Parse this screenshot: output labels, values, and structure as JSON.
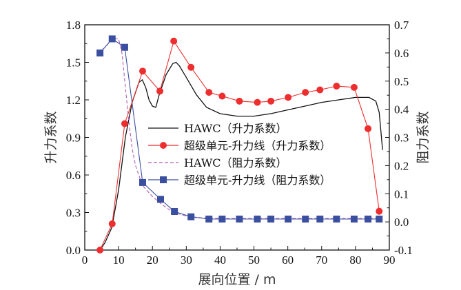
{
  "chart_data": {
    "type": "line",
    "title": "",
    "xlabel": "展向位置 / m",
    "ylabel_left": "升力系数",
    "ylabel_right": "阻力系数",
    "xlim": [
      0,
      90
    ],
    "ylim_left": [
      0.0,
      1.8
    ],
    "ylim_right": [
      -0.1,
      0.7
    ],
    "x_ticks": [
      "0",
      "10",
      "20",
      "30",
      "40",
      "50",
      "60",
      "70",
      "80",
      "90"
    ],
    "y_ticks_left": [
      "0.0",
      "0.3",
      "0.6",
      "0.9",
      "1.2",
      "1.5",
      "1.8"
    ],
    "y_ticks_right": [
      "-0.1",
      "0.0",
      "0.1",
      "0.2",
      "0.3",
      "0.4",
      "0.5",
      "0.6",
      "0.7"
    ],
    "grid": false,
    "legend_position": "center-left",
    "series": [
      {
        "name": "HAWC（升力系数）",
        "axis": "left",
        "style": "solid-line",
        "color": "#111111",
        "x": [
          4.5,
          6,
          8,
          10,
          12,
          14,
          16,
          17,
          18,
          19,
          20,
          21,
          22,
          24,
          26,
          27,
          28,
          30,
          33,
          36,
          40,
          45,
          50,
          55,
          60,
          65,
          70,
          75,
          80,
          84,
          86,
          87,
          88
        ],
        "y": [
          0.0,
          0.06,
          0.18,
          0.48,
          0.9,
          1.18,
          1.34,
          1.36,
          1.3,
          1.2,
          1.15,
          1.14,
          1.24,
          1.4,
          1.49,
          1.5,
          1.47,
          1.38,
          1.24,
          1.14,
          1.09,
          1.07,
          1.07,
          1.09,
          1.12,
          1.15,
          1.18,
          1.2,
          1.22,
          1.22,
          1.19,
          1.1,
          0.8
        ]
      },
      {
        "name": "超级单元-升力线（升力系数）",
        "axis": "left",
        "style": "line-circle",
        "color": "#ee2e2e",
        "x": [
          4.5,
          8.1,
          11.8,
          17.1,
          22.2,
          26.3,
          31.4,
          36.7,
          40.6,
          45.7,
          51.0,
          55.0,
          60.1,
          65.2,
          69.5,
          74.4,
          79.6,
          83.7,
          87.0
        ],
        "y": [
          0.0,
          0.21,
          1.01,
          1.43,
          1.27,
          1.67,
          1.46,
          1.26,
          1.23,
          1.19,
          1.18,
          1.19,
          1.22,
          1.26,
          1.28,
          1.31,
          1.3,
          0.97,
          0.31
        ]
      },
      {
        "name": "HAWC（阻力系数）",
        "axis": "right",
        "style": "dashed-line",
        "color": "#b05cb8",
        "x": [
          4.0,
          6,
          8.1,
          10,
          11,
          12,
          13,
          14,
          15,
          17,
          20,
          23,
          26,
          30,
          35,
          40,
          50,
          60,
          70,
          80,
          88
        ],
        "y": [
          0.6,
          0.62,
          0.65,
          0.65,
          0.6,
          0.48,
          0.36,
          0.26,
          0.2,
          0.13,
          0.09,
          0.06,
          0.035,
          0.02,
          0.014,
          0.012,
          0.012,
          0.012,
          0.012,
          0.012,
          0.012
        ]
      },
      {
        "name": "超级单元-升力线（阻力系数）",
        "axis": "right",
        "style": "line-square",
        "color": "#3a4fa0",
        "x": [
          4.5,
          8.1,
          11.8,
          17.1,
          22.4,
          26.5,
          31.4,
          36.7,
          40.6,
          45.7,
          51.0,
          55.0,
          60.1,
          65.2,
          69.5,
          74.4,
          79.6,
          83.7,
          87.0
        ],
        "y": [
          0.6,
          0.65,
          0.62,
          0.14,
          0.08,
          0.037,
          0.018,
          0.01,
          0.01,
          0.01,
          0.01,
          0.01,
          0.01,
          0.01,
          0.01,
          0.01,
          0.01,
          0.01,
          0.01
        ]
      }
    ]
  }
}
